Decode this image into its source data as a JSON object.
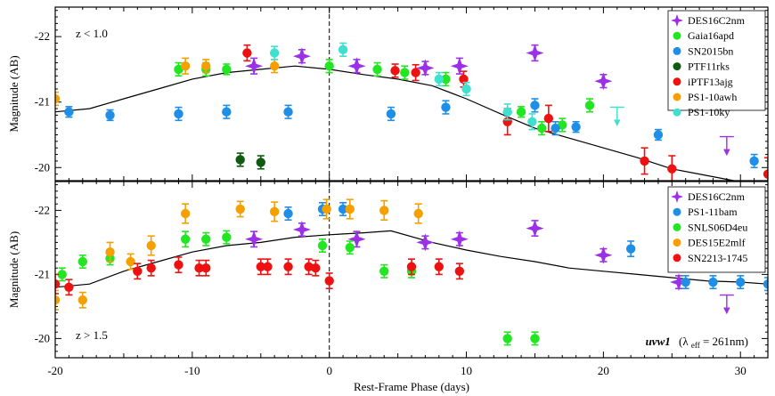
{
  "chart_data": {
    "type": "scatter",
    "xlabel": "Rest-Frame Phase (days)",
    "ylabel": "Magnitude (AB)",
    "xlim": [
      -20,
      32
    ],
    "x_ticks": [
      -20,
      -10,
      0,
      10,
      20,
      30
    ],
    "x_tick_labels": [
      "-20",
      "-10",
      "0",
      "10",
      "20",
      "30"
    ],
    "y_inverted": true,
    "vertical_line_at": 0,
    "legend_placement": "top-right",
    "filter_annotation": {
      "band": "uvw1",
      "lambda": "(λ",
      "lambda_sub": "eff",
      "value": " = 261nm)"
    },
    "panels": [
      {
        "id": "top",
        "annotation": "z < 1.0",
        "ylim": [
          -19.8,
          -22.45
        ],
        "y_ticks": [
          -22,
          -21,
          -20
        ],
        "y_tick_labels": [
          "-22",
          "-21",
          "-20"
        ],
        "template_curve": [
          [
            -20,
            -20.85
          ],
          [
            -17.5,
            -20.9
          ],
          [
            -15,
            -21.05
          ],
          [
            -12.5,
            -21.2
          ],
          [
            -10,
            -21.35
          ],
          [
            -7.5,
            -21.45
          ],
          [
            -5,
            -21.5
          ],
          [
            -2.5,
            -21.55
          ],
          [
            0,
            -21.5
          ],
          [
            2.5,
            -21.42
          ],
          [
            5,
            -21.35
          ],
          [
            7.5,
            -21.25
          ],
          [
            10,
            -21.05
          ],
          [
            12.5,
            -20.82
          ],
          [
            15,
            -20.6
          ],
          [
            17.5,
            -20.45
          ],
          [
            20,
            -20.3
          ],
          [
            22.5,
            -20.15
          ],
          [
            25,
            -19.98
          ],
          [
            27.5,
            -19.88
          ],
          [
            29.5,
            -19.8
          ]
        ],
        "series": [
          {
            "name": "DES16C2nm",
            "color": "#9b30e8",
            "marker": "star",
            "points": [
              [
                -5.5,
                -21.55,
                0.12
              ],
              [
                -2,
                -21.7,
                0.1
              ],
              [
                2,
                -21.55,
                0.1
              ],
              [
                7,
                -21.52,
                0.1
              ],
              [
                9.5,
                -21.55,
                0.12
              ],
              [
                15,
                -21.75,
                0.12
              ],
              [
                20,
                -21.32,
                0.1
              ]
            ],
            "upper_limits": [
              [
                29,
                -20.2
              ]
            ]
          },
          {
            "name": "Gaia16apd",
            "color": "#22e622",
            "marker": "circle",
            "points": [
              [
                -11,
                -21.5,
                0.1
              ],
              [
                -9,
                -21.5,
                0.1
              ],
              [
                -7.5,
                -21.5,
                0.08
              ],
              [
                0,
                -21.55,
                0.1
              ],
              [
                3.5,
                -21.5,
                0.1
              ],
              [
                5.5,
                -21.45,
                0.1
              ],
              [
                8.5,
                -21.35,
                0.1
              ],
              [
                14,
                -20.85,
                0.08
              ],
              [
                15.5,
                -20.6,
                0.1
              ],
              [
                17,
                -20.65,
                0.1
              ],
              [
                19,
                -20.95,
                0.1
              ]
            ]
          },
          {
            "name": "SN2015bn",
            "color": "#1f8ee6",
            "marker": "circle",
            "points": [
              [
                -19,
                -20.85,
                0.08
              ],
              [
                -16,
                -20.8,
                0.08
              ],
              [
                -11,
                -20.82,
                0.1
              ],
              [
                -7.5,
                -20.85,
                0.1
              ],
              [
                -3,
                -20.85,
                0.1
              ],
              [
                4.5,
                -20.82,
                0.1
              ],
              [
                8.5,
                -20.92,
                0.1
              ],
              [
                15,
                -20.95,
                0.1
              ],
              [
                16.5,
                -20.6,
                0.1
              ],
              [
                18,
                -20.62,
                0.08
              ],
              [
                24,
                -20.5,
                0.08
              ],
              [
                31,
                -20.1,
                0.1
              ]
            ]
          },
          {
            "name": "PTF11rks",
            "color": "#0f5a0f",
            "marker": "circle",
            "points": [
              [
                -6.5,
                -20.12,
                0.1
              ],
              [
                -5,
                -20.08,
                0.1
              ]
            ]
          },
          {
            "name": "iPTF13ajg",
            "color": "#ee1111",
            "marker": "circle",
            "points": [
              [
                -6,
                -21.75,
                0.12
              ],
              [
                4.8,
                -21.48,
                0.1
              ],
              [
                6.3,
                -21.45,
                0.12
              ],
              [
                9.8,
                -21.35,
                0.12
              ],
              [
                13,
                -20.7,
                0.2
              ],
              [
                16,
                -20.75,
                0.2
              ],
              [
                23,
                -20.1,
                0.2
              ],
              [
                25,
                -19.98,
                0.2
              ],
              [
                32,
                -19.9,
                0.25
              ]
            ]
          },
          {
            "name": "PS1-10awh",
            "color": "#f5a000",
            "marker": "circle",
            "points": [
              [
                -20,
                -21.05,
                0.1
              ],
              [
                -10.5,
                -21.55,
                0.12
              ],
              [
                -9,
                -21.55,
                0.1
              ],
              [
                -4,
                -21.55,
                0.1
              ]
            ]
          },
          {
            "name": "PS1-10ky",
            "color": "#40e0d0",
            "marker": "circle",
            "points": [
              [
                -4,
                -21.75,
                0.1
              ],
              [
                1,
                -21.8,
                0.1
              ],
              [
                8,
                -21.35,
                0.1
              ],
              [
                10,
                -21.2,
                0.1
              ],
              [
                13,
                -20.85,
                0.12
              ],
              [
                14.8,
                -20.7,
                0.12
              ]
            ],
            "upper_limits": [
              [
                21,
                -20.65
              ]
            ]
          }
        ]
      },
      {
        "id": "bottom",
        "annotation": "z > 1.5",
        "ylim": [
          -19.7,
          -22.45
        ],
        "y_ticks": [
          -22,
          -21,
          -20
        ],
        "y_tick_labels": [
          "-22",
          "-21",
          "-20"
        ],
        "template_curve": [
          [
            -20,
            -20.8
          ],
          [
            -17.5,
            -20.85
          ],
          [
            -15,
            -21.05
          ],
          [
            -12.5,
            -21.2
          ],
          [
            -10,
            -21.35
          ],
          [
            -7.5,
            -21.45
          ],
          [
            -5,
            -21.5
          ],
          [
            -2.5,
            -21.58
          ],
          [
            0,
            -21.62
          ],
          [
            2.5,
            -21.65
          ],
          [
            4.5,
            -21.68
          ],
          [
            7.5,
            -21.5
          ],
          [
            10,
            -21.38
          ],
          [
            12.5,
            -21.28
          ],
          [
            15,
            -21.2
          ],
          [
            17.5,
            -21.1
          ],
          [
            20,
            -21.05
          ],
          [
            22.5,
            -21
          ],
          [
            25,
            -20.95
          ],
          [
            27.5,
            -20.9
          ],
          [
            30,
            -20.88
          ],
          [
            32,
            -20.85
          ]
        ],
        "series": [
          {
            "name": "DES16C2nm",
            "color": "#9b30e8",
            "marker": "star",
            "points": [
              [
                -5.5,
                -21.55,
                0.12
              ],
              [
                -2,
                -21.7,
                0.1
              ],
              [
                2,
                -21.55,
                0.12
              ],
              [
                7,
                -21.5,
                0.1
              ],
              [
                9.5,
                -21.55,
                0.1
              ],
              [
                15,
                -21.72,
                0.12
              ],
              [
                20,
                -21.3,
                0.1
              ],
              [
                25.5,
                -20.88,
                0.1
              ]
            ],
            "upper_limits": [
              [
                29,
                -20.4
              ]
            ]
          },
          {
            "name": "PS1-11bam",
            "color": "#1f8ee6",
            "marker": "circle",
            "points": [
              [
                -3,
                -21.95,
                0.1
              ],
              [
                -0.5,
                -22.02,
                0.1
              ],
              [
                1,
                -22.02,
                0.1
              ],
              [
                22,
                -21.4,
                0.12
              ],
              [
                26,
                -20.88,
                0.1
              ],
              [
                28,
                -20.88,
                0.1
              ],
              [
                30,
                -20.88,
                0.1
              ],
              [
                32,
                -20.85,
                0.1
              ]
            ]
          },
          {
            "name": "SNLS06D4eu",
            "color": "#22e622",
            "marker": "circle",
            "points": [
              [
                -19.5,
                -21.0,
                0.1
              ],
              [
                -18,
                -21.2,
                0.1
              ],
              [
                -16,
                -21.25,
                0.1
              ],
              [
                -10.5,
                -21.55,
                0.12
              ],
              [
                -9,
                -21.55,
                0.1
              ],
              [
                -7.5,
                -21.58,
                0.1
              ],
              [
                -0.5,
                -21.45,
                0.1
              ],
              [
                1.5,
                -21.42,
                0.1
              ],
              [
                4,
                -21.05,
                0.1
              ],
              [
                6,
                -21.05,
                0.1
              ],
              [
                13,
                -20.0,
                0.1
              ],
              [
                15,
                -20.0,
                0.1
              ]
            ]
          },
          {
            "name": "DES15E2mlf",
            "color": "#f5a000",
            "marker": "circle",
            "points": [
              [
                -20,
                -20.6,
                0.15
              ],
              [
                -18,
                -20.6,
                0.12
              ],
              [
                -16,
                -21.35,
                0.15
              ],
              [
                -14.5,
                -21.2,
                0.12
              ],
              [
                -13,
                -21.45,
                0.15
              ],
              [
                -10.5,
                -21.95,
                0.15
              ],
              [
                -6.5,
                -22.02,
                0.12
              ],
              [
                -4,
                -21.98,
                0.15
              ],
              [
                -0.2,
                -22.02,
                0.15
              ],
              [
                1.5,
                -22.02,
                0.15
              ],
              [
                4,
                -22.0,
                0.15
              ],
              [
                6.5,
                -21.95,
                0.15
              ]
            ]
          },
          {
            "name": "SN2213-1745",
            "color": "#ee1111",
            "marker": "circle",
            "points": [
              [
                -20,
                -20.85,
                0.15
              ],
              [
                -19,
                -20.8,
                0.12
              ],
              [
                -14,
                -21.05,
                0.12
              ],
              [
                -13,
                -21.1,
                0.12
              ],
              [
                -11,
                -21.15,
                0.12
              ],
              [
                -9.5,
                -21.1,
                0.12
              ],
              [
                -9,
                -21.1,
                0.12
              ],
              [
                -5,
                -21.12,
                0.12
              ],
              [
                -4.5,
                -21.12,
                0.12
              ],
              [
                -3,
                -21.12,
                0.12
              ],
              [
                -1.5,
                -21.12,
                0.12
              ],
              [
                -1,
                -21.1,
                0.12
              ],
              [
                0,
                -20.9,
                0.12
              ],
              [
                6,
                -21.12,
                0.12
              ],
              [
                8,
                -21.12,
                0.12
              ],
              [
                9.5,
                -21.05,
                0.12
              ]
            ]
          }
        ]
      }
    ]
  }
}
